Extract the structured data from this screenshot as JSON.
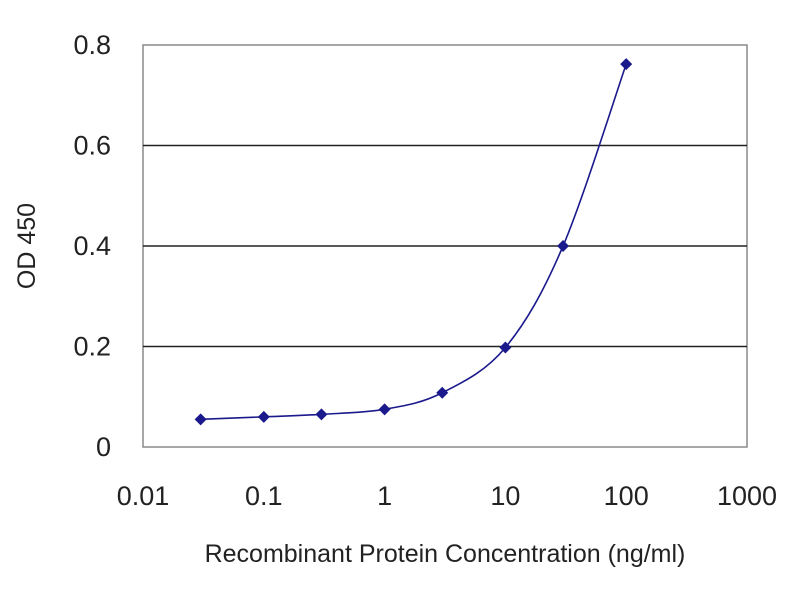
{
  "chart_data": {
    "type": "line",
    "xlabel": "Recombinant Protein Concentration (ng/ml)",
    "ylabel": "OD 450",
    "x_scale": "log",
    "xlim": [
      0.01,
      1000
    ],
    "ylim": [
      0,
      0.8
    ],
    "x_ticks": [
      "0.01",
      "0.1",
      "1",
      "10",
      "100",
      "1000"
    ],
    "y_ticks": [
      "0",
      "0.2",
      "0.4",
      "0.6",
      "0.8"
    ],
    "grid": "horizontal",
    "legend": "none",
    "series": [
      {
        "color": "#1a1a8c",
        "marker": "diamond",
        "smooth": true,
        "x": [
          0.03,
          0.1,
          0.3,
          1,
          3,
          10,
          30,
          100
        ],
        "y": [
          0.055,
          0.06,
          0.065,
          0.075,
          0.108,
          0.198,
          0.4,
          0.762
        ]
      }
    ]
  }
}
